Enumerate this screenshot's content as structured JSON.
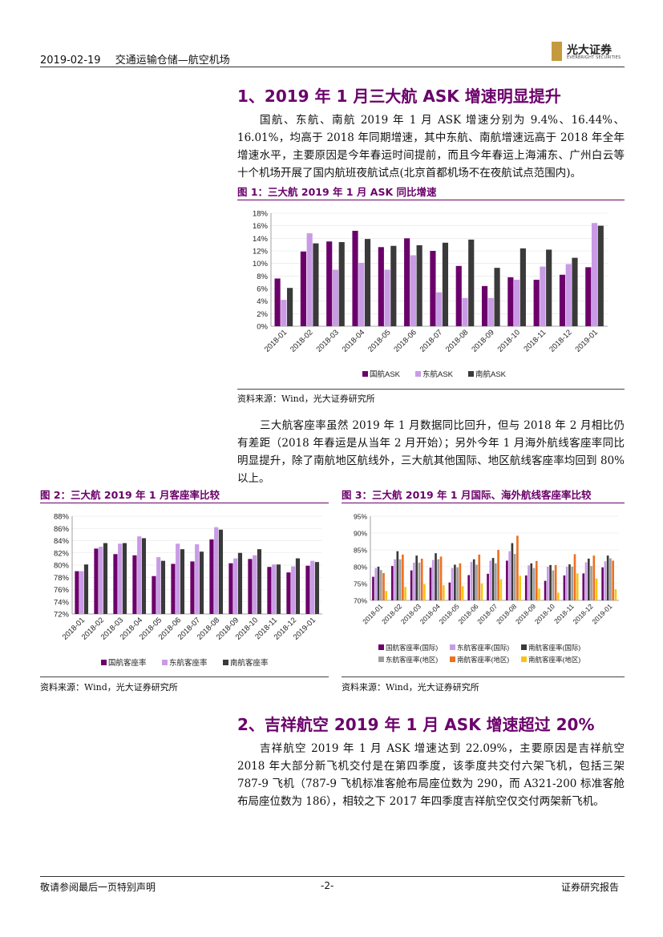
{
  "header": {
    "date": "2019-02-19",
    "sector": "交通运输仓储—航空机场",
    "logo_cn": "光大证券",
    "logo_en": "EVERBRIGHT SECURITIES"
  },
  "section1": {
    "title": "1、2019 年 1 月三大航 ASK 增速明显提升",
    "para1": "国航、东航、南航 2019 年 1 月 ASK 增速分别为 9.4%、16.44%、16.01%，均高于 2018 年同期增速，其中东航、南航增速远高于 2018 年全年增速水平，主要原因是今年春运时间提前，而且今年春运上海浦东、广州白云等十个机场开展了国内航班夜航试点(北京首都机场不在夜航试点范围内)。",
    "fig1_title": "图 1：三大航 2019 年 1 月 ASK 同比增速",
    "fig1_source": "资料来源：Wind，光大证券研究所",
    "para2": "三大航客座率虽然 2019 年 1 月数据同比回升，但与 2018 年 2 月相比仍有差距（2018 年春运是从当年 2 月开始）；另外今年 1 月海外航线客座率同比明显提升，除了南航地区航线外，三大航其他国际、地区航线客座率均回到 80%以上。",
    "fig2_title": "图 2：三大航 2019 年 1 月客座率比较",
    "fig2_source": "资料来源：Wind，光大证券研究所",
    "fig3_title": "图 3：三大航 2019 年 1 月国际、海外航线客座率比较",
    "fig3_source": "资料来源：Wind，光大证券研究所"
  },
  "section2": {
    "title": "2、吉祥航空 2019 年 1 月 ASK 增速超过 20%",
    "para": "吉祥航空 2019 年 1 月 ASK 增速达到 22.09%，主要原因是吉祥航空 2018 年大部分新飞机交付是在第四季度，该季度共交付六架飞机，包括三架 787-9 飞机（787-9 飞机标准客舱布局座位数为 290，而 A321-200 标准客舱布局座位数为 186），相较之下 2017 年四季度吉祥航空仅交付两架新飞机。"
  },
  "footer": {
    "left": "敬请参阅最后一页特别声明",
    "center": "-2-",
    "right": "证券研究报告"
  },
  "colors": {
    "air_china": "#6b006b",
    "eastern": "#c99be6",
    "southern": "#3a3a3a",
    "eastern_region": "#9e9e9e",
    "southern_intl_region": "#f07020",
    "southern_region": "#f5c518"
  },
  "chart_data": [
    {
      "type": "bar",
      "title": "图 1：三大航 2019 年 1 月 ASK 同比增速",
      "categories": [
        "2018-01",
        "2018-02",
        "2018-03",
        "2018-04",
        "2018-05",
        "2018-06",
        "2018-07",
        "2018-08",
        "2018-09",
        "2018-10",
        "2018-11",
        "2018-12",
        "2019-01"
      ],
      "ylim": [
        0,
        18
      ],
      "yticks": [
        "0%",
        "2%",
        "4%",
        "6%",
        "8%",
        "10%",
        "12%",
        "14%",
        "16%",
        "18%"
      ],
      "series": [
        {
          "name": "国航ASK",
          "values": [
            7.6,
            11.9,
            13.5,
            15.2,
            12.6,
            14.0,
            12.0,
            9.6,
            6.4,
            7.8,
            7.4,
            8.2,
            9.4
          ]
        },
        {
          "name": "东航ASK",
          "values": [
            4.2,
            14.8,
            9.0,
            10.1,
            9.0,
            11.3,
            5.4,
            4.5,
            4.5,
            7.4,
            9.5,
            9.9,
            16.44
          ]
        },
        {
          "name": "南航ASK",
          "values": [
            6.1,
            13.2,
            13.4,
            13.9,
            12.8,
            12.9,
            13.3,
            13.8,
            9.3,
            12.4,
            12.2,
            10.9,
            16.01
          ]
        }
      ]
    },
    {
      "type": "bar",
      "title": "图 2：三大航 2019 年 1 月客座率比较",
      "categories": [
        "2018-01",
        "2018-02",
        "2018-03",
        "2018-04",
        "2018-05",
        "2018-06",
        "2018-07",
        "2018-08",
        "2018-09",
        "2018-10",
        "2018-11",
        "2018-12",
        "2019-01"
      ],
      "ylim": [
        72,
        88
      ],
      "yticks": [
        "72%",
        "74%",
        "76%",
        "78%",
        "80%",
        "82%",
        "84%",
        "86%",
        "88%"
      ],
      "series": [
        {
          "name": "国航客座率",
          "values": [
            79.0,
            82.7,
            81.8,
            81.6,
            78.2,
            80.2,
            80.6,
            84.2,
            80.3,
            81.0,
            79.7,
            78.8,
            79.9
          ]
        },
        {
          "name": "东航客座率",
          "values": [
            79.0,
            83.0,
            83.5,
            84.7,
            81.3,
            83.5,
            83.4,
            86.2,
            81.1,
            81.6,
            80.1,
            79.8,
            80.7
          ]
        },
        {
          "name": "南航客座率",
          "values": [
            80.1,
            83.6,
            83.6,
            84.4,
            80.7,
            82.6,
            82.2,
            85.8,
            82.0,
            82.6,
            80.1,
            81.1,
            80.5
          ]
        }
      ]
    },
    {
      "type": "bar",
      "title": "图 3：三大航 2019 年 1 月国际、海外航线客座率比较",
      "categories": [
        "2018-01",
        "2018-02",
        "2018-03",
        "2018-04",
        "2018-05",
        "2018-06",
        "2018-07",
        "2018-08",
        "2018-09",
        "2018-10",
        "2018-11",
        "2018-12",
        "2019-01"
      ],
      "ylim": [
        70,
        95
      ],
      "yticks": [
        "70%",
        "75%",
        "80%",
        "85%",
        "90%",
        "95%"
      ],
      "series": [
        {
          "name": "国航客座率(国际)",
          "values": [
            77.0,
            80.2,
            78.9,
            79.7,
            75.3,
            77.5,
            77.9,
            81.8,
            77.4,
            75.8,
            77.4,
            78.0,
            79.8
          ]
        },
        {
          "name": "东航客座率(国际)",
          "values": [
            79.6,
            82.2,
            81.2,
            82.0,
            79.6,
            81.4,
            81.8,
            84.6,
            80.4,
            80.0,
            80.0,
            81.3,
            81.6
          ]
        },
        {
          "name": "南航客座率(国际)",
          "values": [
            80.0,
            84.6,
            83.3,
            84.0,
            80.6,
            82.2,
            82.6,
            87.0,
            81.0,
            80.5,
            80.7,
            82.4,
            83.3
          ]
        },
        {
          "name": "东航客座率(地区)",
          "values": [
            79.0,
            82.2,
            81.2,
            82.2,
            79.8,
            80.6,
            81.0,
            83.8,
            79.6,
            78.9,
            80.0,
            80.2,
            82.5
          ]
        },
        {
          "name": "南航客座率(地区)",
          "values": [
            78.1,
            83.6,
            82.4,
            83.0,
            81.0,
            83.6,
            85.0,
            89.2,
            81.7,
            80.5,
            83.7,
            83.3,
            81.8
          ]
        },
        {
          "name": "南航客座率(地区)",
          "values": [
            72.8,
            74.0,
            74.8,
            74.5,
            74.2,
            75.0,
            76.3,
            77.3,
            73.5,
            72.3,
            78.0,
            76.5,
            73.3
          ]
        }
      ]
    }
  ]
}
